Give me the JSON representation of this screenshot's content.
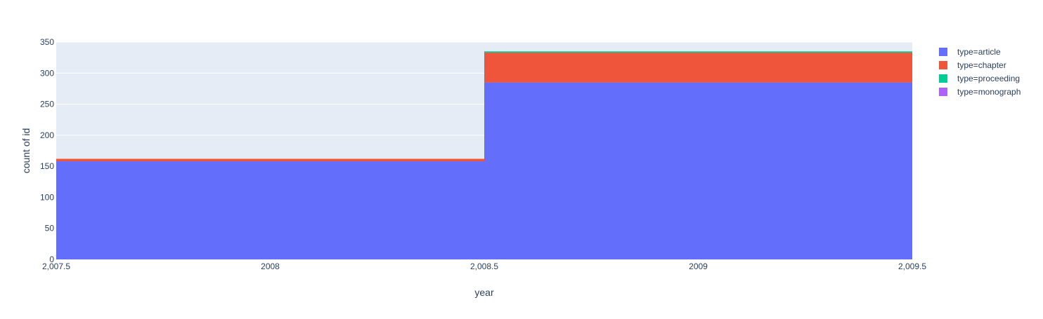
{
  "chart_data": {
    "type": "bar",
    "barmode": "stack",
    "x_bins": [
      {
        "start": 2007.5,
        "end": 2008.5
      },
      {
        "start": 2008.5,
        "end": 2009.5
      }
    ],
    "series": [
      {
        "name": "type=article",
        "color": "#636efa",
        "values": [
          158,
          285
        ]
      },
      {
        "name": "type=chapter",
        "color": "#ef553b",
        "values": [
          4,
          48
        ]
      },
      {
        "name": "type=proceeding",
        "color": "#00cc96",
        "values": [
          0,
          2
        ]
      },
      {
        "name": "type=monograph",
        "color": "#ab63fa",
        "values": [
          0,
          0
        ]
      }
    ],
    "xlabel": "year",
    "ylabel": "count of id",
    "xlim": [
      2007.5,
      2009.5
    ],
    "ylim": [
      0,
      350
    ],
    "x_ticks": [
      {
        "value": 2007.5,
        "label": "2,007.5"
      },
      {
        "value": 2008,
        "label": "2008"
      },
      {
        "value": 2008.5,
        "label": "2,008.5"
      },
      {
        "value": 2009,
        "label": "2009"
      },
      {
        "value": 2009.5,
        "label": "2,009.5"
      }
    ],
    "y_ticks": [
      {
        "value": 0,
        "label": "0"
      },
      {
        "value": 50,
        "label": "50"
      },
      {
        "value": 100,
        "label": "100"
      },
      {
        "value": 150,
        "label": "150"
      },
      {
        "value": 200,
        "label": "200"
      },
      {
        "value": 250,
        "label": "250"
      },
      {
        "value": 300,
        "label": "300"
      },
      {
        "value": 350,
        "label": "350"
      }
    ],
    "grid": true,
    "legend_position": "top-right",
    "plot_background": "#e5ecf6",
    "text_color": "#2a3f5f"
  }
}
